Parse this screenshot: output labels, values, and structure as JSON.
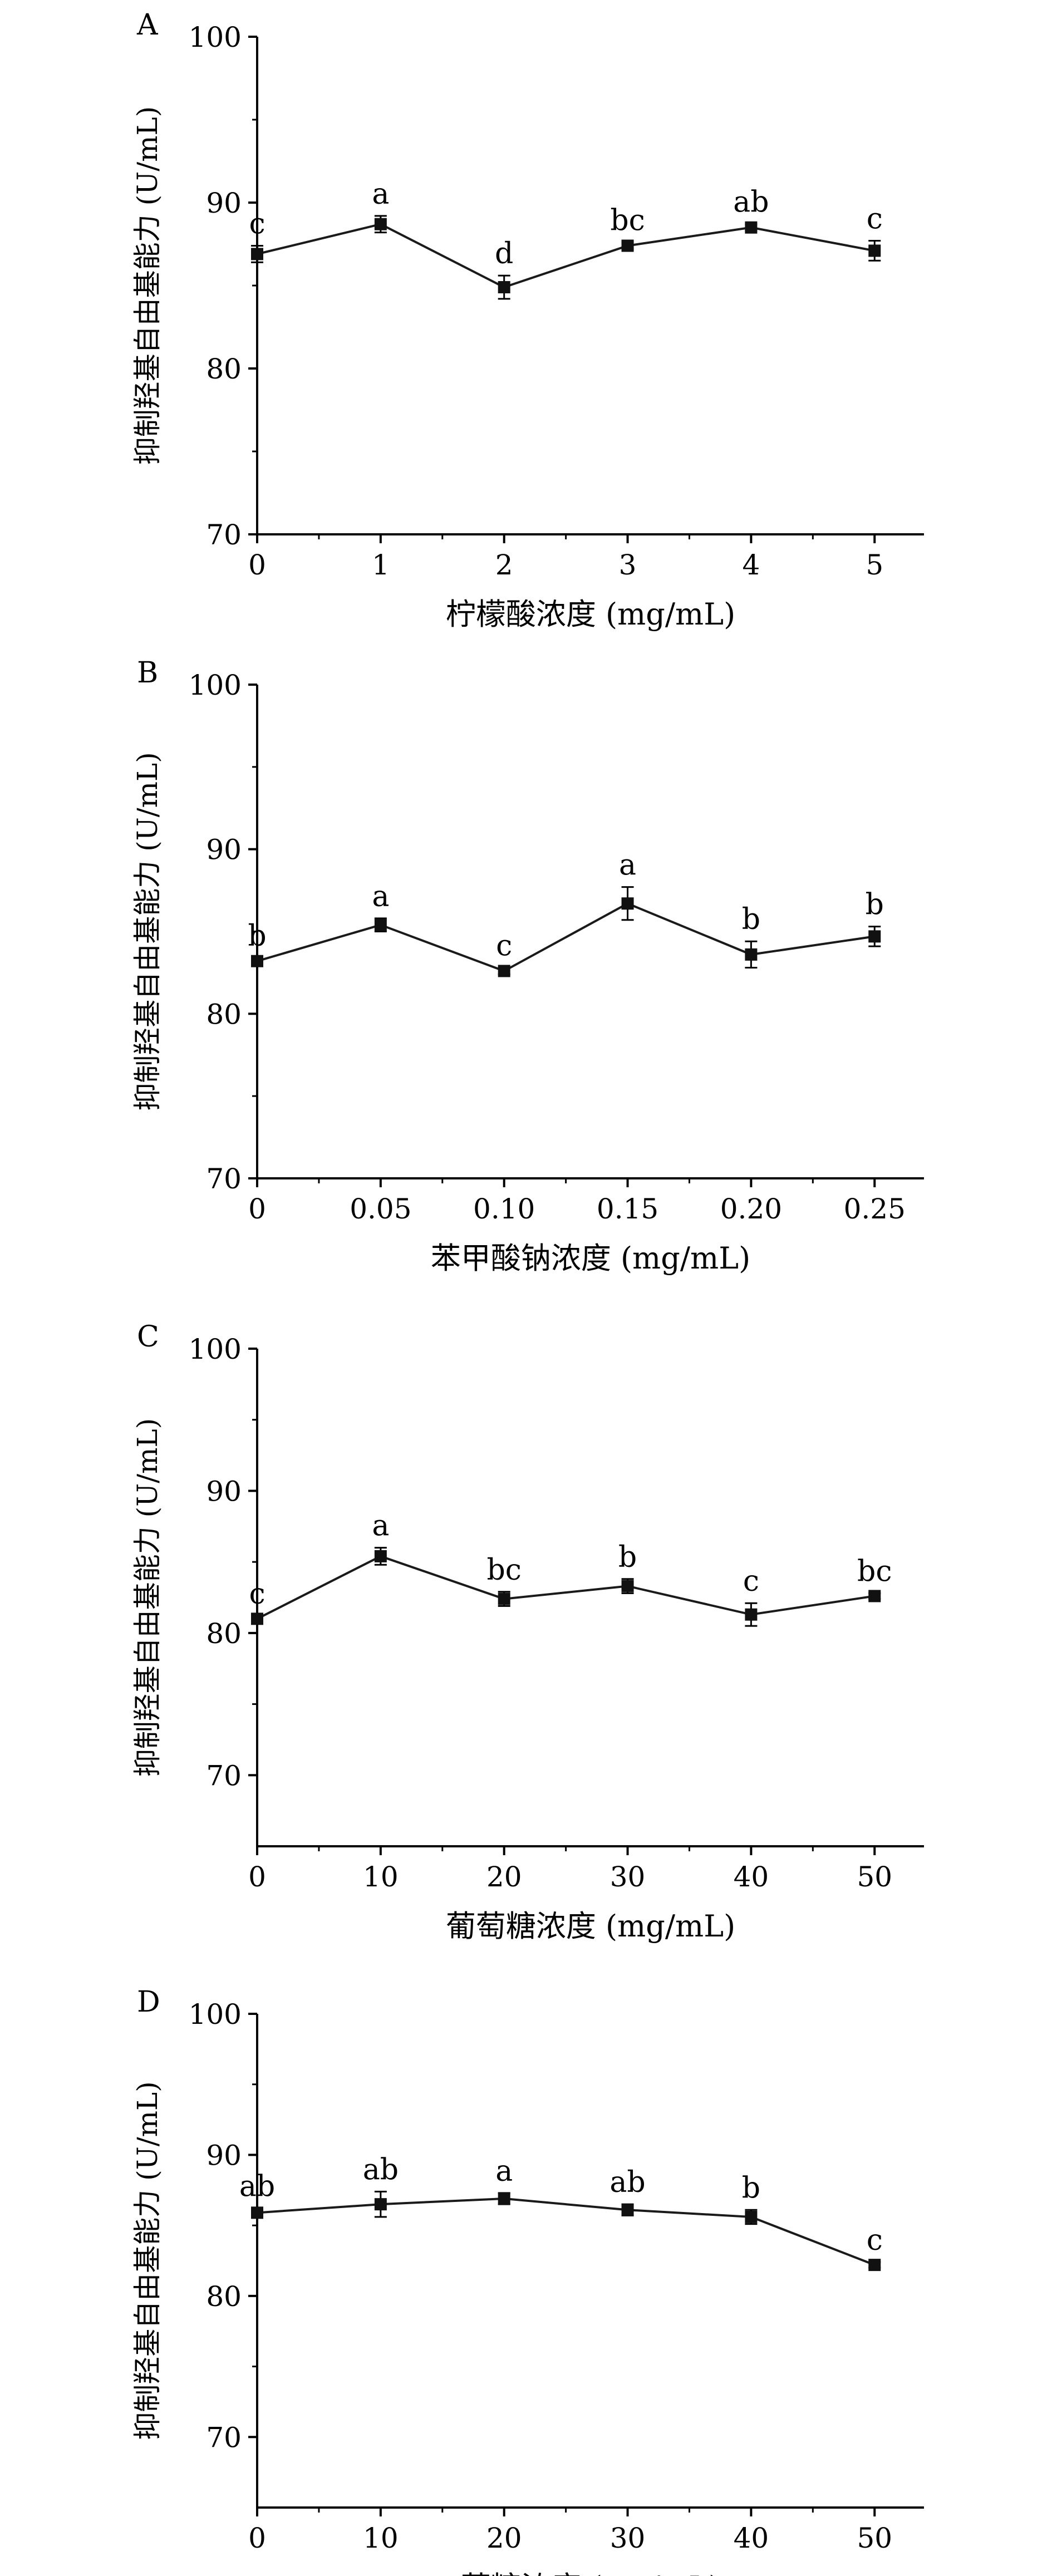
{
  "figure": {
    "ylabel": "抑制羟基自由基能力 (U/mL)"
  },
  "chart_data": [
    {
      "type": "line",
      "panel_label": "A",
      "xlabel": "柠檬酸浓度 (mg/mL)",
      "ylabel": "抑制羟基自由基能力 (U/mL)",
      "x": [
        0,
        1,
        2,
        3,
        4,
        5
      ],
      "x_ticklabels": [
        "0",
        "1",
        "2",
        "3",
        "4",
        "5"
      ],
      "y": [
        86.9,
        88.7,
        84.9,
        87.4,
        88.5,
        87.1
      ],
      "y_err": [
        0.5,
        0.5,
        0.7,
        0.2,
        0.2,
        0.6
      ],
      "sig_labels": [
        "c",
        "a",
        "d",
        "bc",
        "ab",
        "c"
      ],
      "xlim": [
        0,
        5.4
      ],
      "ylim": [
        70,
        100
      ],
      "y_ticks": [
        70,
        80,
        90,
        100
      ]
    },
    {
      "type": "line",
      "panel_label": "B",
      "xlabel": "苯甲酸钠浓度 (mg/mL)",
      "ylabel": "抑制羟基自由基能力 (U/mL)",
      "x": [
        0,
        0.05,
        0.1,
        0.15,
        0.2,
        0.25
      ],
      "x_ticklabels": [
        "0",
        "0.05",
        "0.10",
        "0.15",
        "0.20",
        "0.25"
      ],
      "y": [
        83.2,
        85.4,
        82.6,
        86.7,
        83.6,
        84.7
      ],
      "y_err": [
        0.2,
        0.4,
        0.2,
        1.0,
        0.8,
        0.6
      ],
      "sig_labels": [
        "b",
        "a",
        "c",
        "a",
        "b",
        "b"
      ],
      "xlim": [
        0,
        0.27
      ],
      "ylim": [
        70,
        100
      ],
      "y_ticks": [
        70,
        80,
        90,
        100
      ]
    },
    {
      "type": "line",
      "panel_label": "C",
      "xlabel": "葡萄糖浓度 (mg/mL)",
      "ylabel": "抑制羟基自由基能力 (U/mL)",
      "x": [
        0,
        10,
        20,
        30,
        40,
        50
      ],
      "x_ticklabels": [
        "0",
        "10",
        "20",
        "30",
        "40",
        "50"
      ],
      "y": [
        81.0,
        85.4,
        82.4,
        83.3,
        81.3,
        82.6
      ],
      "y_err": [
        0.2,
        0.6,
        0.5,
        0.5,
        0.8,
        0.2
      ],
      "sig_labels": [
        "c",
        "a",
        "bc",
        "b",
        "c",
        "bc"
      ],
      "xlim": [
        0,
        54
      ],
      "ylim": [
        65,
        100
      ],
      "y_ticks": [
        70,
        80,
        90,
        100
      ]
    },
    {
      "type": "line",
      "panel_label": "D",
      "xlabel": "蔗糖浓度 (mg/mL)",
      "ylabel": "抑制羟基自由基能力 (U/mL)",
      "x": [
        0,
        10,
        20,
        30,
        40,
        50
      ],
      "x_ticklabels": [
        "0",
        "10",
        "20",
        "30",
        "40",
        "50"
      ],
      "y": [
        85.9,
        86.5,
        86.9,
        86.1,
        85.6,
        82.2
      ],
      "y_err": [
        0.3,
        0.9,
        0.4,
        0.4,
        0.5,
        0.2
      ],
      "sig_labels": [
        "ab",
        "ab",
        "a",
        "ab",
        "b",
        "c"
      ],
      "xlim": [
        0,
        54
      ],
      "ylim": [
        65,
        100
      ],
      "y_ticks": [
        70,
        80,
        90,
        100
      ]
    }
  ]
}
